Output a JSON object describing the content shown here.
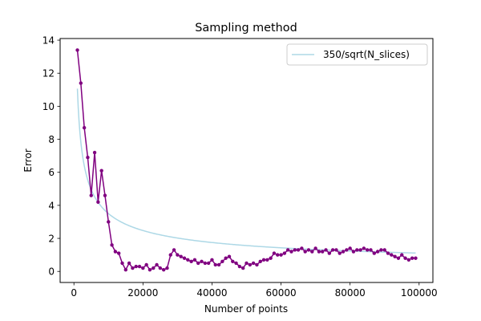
{
  "chart_data": {
    "type": "line",
    "title": "Sampling method",
    "xlabel": "Number of points",
    "ylabel": "Error",
    "xlim": [
      -4000,
      104000
    ],
    "ylim": [
      -0.67,
      14.1
    ],
    "x_ticks": [
      0,
      20000,
      40000,
      60000,
      80000,
      100000
    ],
    "x_tick_labels": [
      "0",
      "20000",
      "40000",
      "60000",
      "80000",
      "100000"
    ],
    "y_ticks": [
      0,
      2,
      4,
      6,
      8,
      10,
      12,
      14
    ],
    "y_tick_labels": [
      "0",
      "2",
      "4",
      "6",
      "8",
      "10",
      "12",
      "14"
    ],
    "grid": false,
    "legend_position": "top-right",
    "series": [
      {
        "name": "",
        "color": "#800080",
        "marker": "circle",
        "x": [
          1000,
          2000,
          3000,
          4000,
          5000,
          6000,
          7000,
          8000,
          9000,
          10000,
          11000,
          12000,
          13000,
          14000,
          15000,
          16000,
          17000,
          18000,
          19000,
          20000,
          21000,
          22000,
          23000,
          24000,
          25000,
          26000,
          27000,
          28000,
          29000,
          30000,
          31000,
          32000,
          33000,
          34000,
          35000,
          36000,
          37000,
          38000,
          39000,
          40000,
          41000,
          42000,
          43000,
          44000,
          45000,
          46000,
          47000,
          48000,
          49000,
          50000,
          51000,
          52000,
          53000,
          54000,
          55000,
          56000,
          57000,
          58000,
          59000,
          60000,
          61000,
          62000,
          63000,
          64000,
          65000,
          66000,
          67000,
          68000,
          69000,
          70000,
          71000,
          72000,
          73000,
          74000,
          75000,
          76000,
          77000,
          78000,
          79000,
          80000,
          81000,
          82000,
          83000,
          84000,
          85000,
          86000,
          87000,
          88000,
          89000,
          90000,
          91000,
          92000,
          93000,
          94000,
          95000,
          96000,
          97000,
          98000,
          99000
        ],
        "y": [
          13.4,
          11.4,
          8.7,
          6.9,
          4.6,
          7.2,
          4.2,
          6.1,
          4.6,
          3.0,
          1.6,
          1.2,
          1.1,
          0.5,
          0.1,
          0.5,
          0.2,
          0.3,
          0.3,
          0.2,
          0.4,
          0.1,
          0.2,
          0.4,
          0.2,
          0.1,
          0.2,
          1.0,
          1.3,
          1.0,
          0.9,
          0.8,
          0.7,
          0.6,
          0.7,
          0.5,
          0.6,
          0.5,
          0.5,
          0.7,
          0.4,
          0.4,
          0.6,
          0.8,
          0.9,
          0.6,
          0.5,
          0.3,
          0.2,
          0.5,
          0.4,
          0.5,
          0.4,
          0.6,
          0.7,
          0.7,
          0.8,
          1.1,
          1.0,
          1.0,
          1.1,
          1.3,
          1.2,
          1.3,
          1.3,
          1.4,
          1.2,
          1.3,
          1.2,
          1.4,
          1.2,
          1.2,
          1.3,
          1.1,
          1.3,
          1.3,
          1.1,
          1.2,
          1.3,
          1.4,
          1.2,
          1.3,
          1.3,
          1.4,
          1.3,
          1.3,
          1.1,
          1.2,
          1.3,
          1.3,
          1.1,
          1.0,
          0.9,
          0.8,
          1.0,
          0.8,
          0.7,
          0.8,
          0.8
        ]
      },
      {
        "name": "350/sqrt(N_slices)",
        "color": "#add8e6",
        "marker": "none",
        "formula": "350/sqrt(x)",
        "x_range": [
          1000,
          99000
        ]
      }
    ]
  }
}
